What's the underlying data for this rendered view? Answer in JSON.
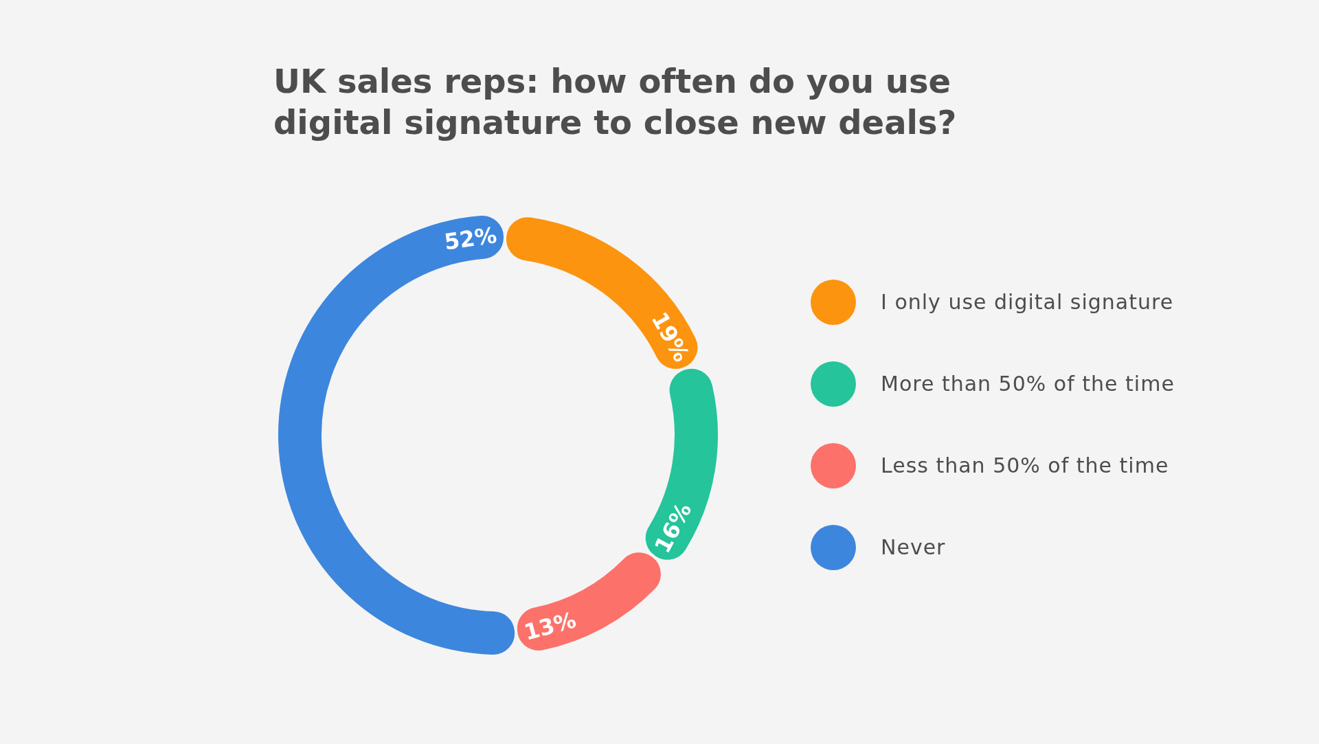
{
  "chart_data": {
    "type": "donut",
    "title": "UK sales reps: how often do you use digital signature to close new deals?",
    "categories": [
      "I only use digital signature",
      "More than 50% of the time",
      "Less than 50% of the time",
      "Never"
    ],
    "values": [
      19,
      16,
      13,
      52
    ],
    "colors": [
      "#fc940f",
      "#25c49b",
      "#fc7169",
      "#3d86dd"
    ],
    "value_labels": [
      "19%",
      "16%",
      "13%",
      "52%"
    ],
    "legend": "right"
  }
}
